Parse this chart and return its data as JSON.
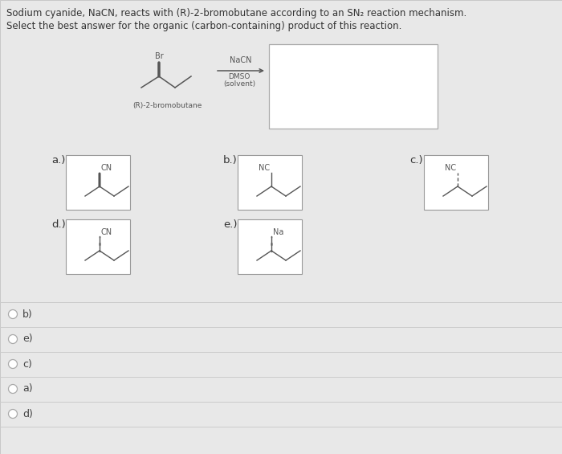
{
  "bg_color": "#dcdcdc",
  "panel_bg": "#e8e8e8",
  "white": "#ffffff",
  "text_color": "#333333",
  "mol_color": "#555555",
  "box_edge": "#999999",
  "radio_edge": "#aaaaaa",
  "divider_color": "#cccccc",
  "title_line1": "Sodium cyanide, NaCN, reacts with (R)-2-bromobutane according to an SN₂ reaction mechanism.",
  "title_line2": "Select the best answer for the organic (carbon-containing) product of this reaction.",
  "answer_options": [
    "b)",
    "e)",
    "c)",
    "a)",
    "d)"
  ],
  "fig_width": 7.0,
  "fig_height": 5.65,
  "dpi": 100
}
